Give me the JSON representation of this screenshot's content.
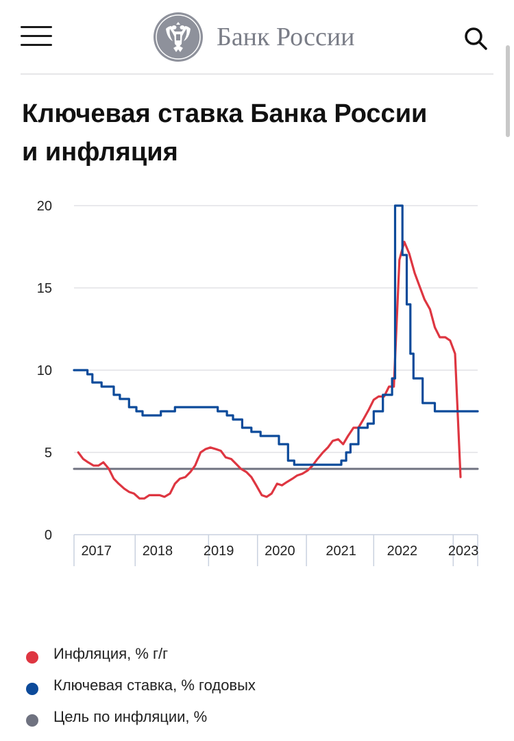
{
  "header": {
    "bank_name": "Банк России",
    "logo_icon": "double-headed-eagle-emblem",
    "menu_icon": "hamburger-menu-icon",
    "search_icon": "search-icon"
  },
  "title": "Ключевая ставка Банка России и инфляция",
  "colors": {
    "inflation": "#de3641",
    "key_rate": "#0c4a9a",
    "target": "#6f7280"
  },
  "chart_data": {
    "type": "line",
    "title": "Ключевая ставка Банка России и инфляция",
    "xlabel": "",
    "ylabel": "",
    "xlim": [
      2016.6,
      2023.2
    ],
    "ylim": [
      0,
      20
    ],
    "yticks": [
      0,
      5,
      10,
      15,
      20
    ],
    "x_tick_labels": [
      {
        "label": "2017",
        "x": 2017.0
      },
      {
        "label": "2018",
        "x": 2018.0
      },
      {
        "label": "2019",
        "x": 2019.0
      },
      {
        "label": "2020",
        "x": 2020.0
      },
      {
        "label": "2021",
        "x": 2021.0
      },
      {
        "label": "2022",
        "x": 2022.0
      },
      {
        "label": "2023",
        "x": 2023.0
      }
    ],
    "x_separators": [
      2016.6,
      2017.6,
      2018.8,
      2019.6,
      2020.4,
      2021.5,
      2022.8,
      2023.2
    ],
    "grid": true,
    "legend_position": "bottom",
    "series": [
      {
        "name": "Инфляция, % г/г",
        "color": "#de3641",
        "step": false,
        "points": [
          [
            2016.67,
            5.0
          ],
          [
            2016.75,
            4.6
          ],
          [
            2016.83,
            4.4
          ],
          [
            2016.92,
            4.2
          ],
          [
            2017.0,
            4.2
          ],
          [
            2017.08,
            4.4
          ],
          [
            2017.17,
            4.0
          ],
          [
            2017.25,
            3.4
          ],
          [
            2017.33,
            3.1
          ],
          [
            2017.42,
            2.8
          ],
          [
            2017.5,
            2.6
          ],
          [
            2017.58,
            2.5
          ],
          [
            2017.67,
            2.2
          ],
          [
            2017.75,
            2.2
          ],
          [
            2017.83,
            2.4
          ],
          [
            2017.92,
            2.4
          ],
          [
            2018.0,
            2.4
          ],
          [
            2018.08,
            2.3
          ],
          [
            2018.17,
            2.5
          ],
          [
            2018.25,
            3.1
          ],
          [
            2018.33,
            3.4
          ],
          [
            2018.42,
            3.5
          ],
          [
            2018.5,
            3.8
          ],
          [
            2018.58,
            4.2
          ],
          [
            2018.67,
            5.0
          ],
          [
            2018.75,
            5.2
          ],
          [
            2018.83,
            5.3
          ],
          [
            2018.92,
            5.2
          ],
          [
            2019.0,
            5.1
          ],
          [
            2019.08,
            4.7
          ],
          [
            2019.17,
            4.6
          ],
          [
            2019.25,
            4.3
          ],
          [
            2019.33,
            4.0
          ],
          [
            2019.42,
            3.8
          ],
          [
            2019.5,
            3.5
          ],
          [
            2019.58,
            3.0
          ],
          [
            2019.67,
            2.4
          ],
          [
            2019.75,
            2.3
          ],
          [
            2019.83,
            2.5
          ],
          [
            2019.92,
            3.1
          ],
          [
            2020.0,
            3.0
          ],
          [
            2020.08,
            3.2
          ],
          [
            2020.17,
            3.4
          ],
          [
            2020.25,
            3.6
          ],
          [
            2020.33,
            3.7
          ],
          [
            2020.42,
            3.9
          ],
          [
            2020.5,
            4.2
          ],
          [
            2020.58,
            4.6
          ],
          [
            2020.67,
            5.0
          ],
          [
            2020.75,
            5.3
          ],
          [
            2020.83,
            5.7
          ],
          [
            2020.92,
            5.8
          ],
          [
            2021.0,
            5.5
          ],
          [
            2021.08,
            6.0
          ],
          [
            2021.17,
            6.5
          ],
          [
            2021.25,
            6.5
          ],
          [
            2021.33,
            7.0
          ],
          [
            2021.42,
            7.6
          ],
          [
            2021.5,
            8.2
          ],
          [
            2021.58,
            8.4
          ],
          [
            2021.67,
            8.4
          ],
          [
            2021.75,
            9.0
          ],
          [
            2021.83,
            9.0
          ],
          [
            2021.92,
            16.7
          ],
          [
            2022.0,
            17.8
          ],
          [
            2022.08,
            17.1
          ],
          [
            2022.17,
            15.9
          ],
          [
            2022.25,
            15.1
          ],
          [
            2022.33,
            14.3
          ],
          [
            2022.42,
            13.7
          ],
          [
            2022.5,
            12.6
          ],
          [
            2022.58,
            12.0
          ],
          [
            2022.67,
            12.0
          ],
          [
            2022.75,
            11.8
          ],
          [
            2022.83,
            11.0
          ],
          [
            2022.92,
            3.5
          ]
        ]
      },
      {
        "name": "Ключевая ставка, % годовых",
        "color": "#0c4a9a",
        "step": true,
        "points": [
          [
            2016.6,
            10.0
          ],
          [
            2016.82,
            9.75
          ],
          [
            2016.9,
            9.25
          ],
          [
            2017.05,
            9.0
          ],
          [
            2017.25,
            8.5
          ],
          [
            2017.35,
            8.25
          ],
          [
            2017.5,
            7.75
          ],
          [
            2017.62,
            7.5
          ],
          [
            2017.72,
            7.25
          ],
          [
            2018.02,
            7.5
          ],
          [
            2018.25,
            7.75
          ],
          [
            2018.75,
            7.75
          ],
          [
            2018.95,
            7.5
          ],
          [
            2019.1,
            7.25
          ],
          [
            2019.2,
            7.0
          ],
          [
            2019.35,
            6.5
          ],
          [
            2019.5,
            6.25
          ],
          [
            2019.65,
            6.0
          ],
          [
            2019.95,
            5.5
          ],
          [
            2020.1,
            4.5
          ],
          [
            2020.2,
            4.25
          ],
          [
            2020.85,
            4.25
          ],
          [
            2020.97,
            4.5
          ],
          [
            2021.05,
            5.0
          ],
          [
            2021.12,
            5.5
          ],
          [
            2021.25,
            6.5
          ],
          [
            2021.4,
            6.75
          ],
          [
            2021.5,
            7.5
          ],
          [
            2021.65,
            8.5
          ],
          [
            2021.8,
            9.5
          ],
          [
            2021.85,
            20.0
          ],
          [
            2021.97,
            17.0
          ],
          [
            2022.04,
            14.0
          ],
          [
            2022.1,
            11.0
          ],
          [
            2022.15,
            9.5
          ],
          [
            2022.3,
            8.0
          ],
          [
            2022.5,
            7.5
          ],
          [
            2023.2,
            7.5
          ]
        ]
      },
      {
        "name": "Цель по инфляции, %",
        "color": "#6f7280",
        "step": false,
        "points": [
          [
            2016.6,
            4.0
          ],
          [
            2023.2,
            4.0
          ]
        ]
      }
    ]
  }
}
